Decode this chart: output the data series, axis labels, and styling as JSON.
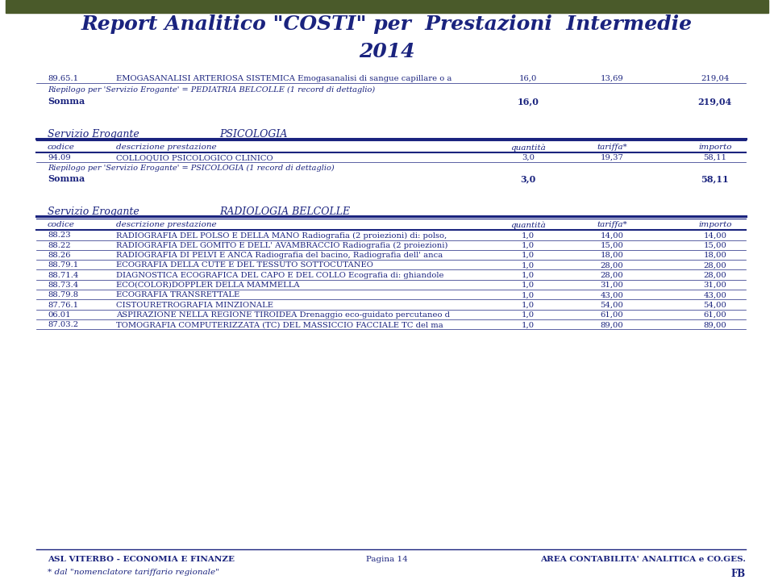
{
  "bg_color": "#ffffff",
  "top_bar_color": "#4a5a2a",
  "title_color": "#1a237e",
  "title": "Report Analitico \"COSTI\" per  Prestazioni  Intermedie\n2014",
  "sections": [
    {
      "codice": "89.65.1",
      "descrizione": "EMOGASANALISI ARTERIOSA SISTEMICA Emogasanalisi di sangue capillare o a",
      "quantita": "16,0",
      "tariffa": "13,69",
      "importo": "219,04"
    },
    {
      "riepilogo": "Riepilogo per 'Servizio Erogante' = PEDIATRIA BELCOLLE (1 record di dettaglio)"
    },
    {
      "somma": true,
      "quantita": "16,0",
      "importo": "219,04"
    }
  ],
  "servizio_psicologia": {
    "label": "Servizio Erogante",
    "name": "PSICOLOGIA",
    "header": [
      "codice",
      "descrizione prestazione",
      "quantità",
      "tariffa*",
      "importo"
    ],
    "rows": [
      {
        "codice": "94.09",
        "descrizione": "COLLOQUIO PSICOLOGICO CLINICO",
        "quantita": "3,0",
        "tariffa": "19,37",
        "importo": "58,11"
      }
    ],
    "riepilogo": "Riepilogo per 'Servizio Erogante' = PSICOLOGIA (1 record di dettaglio)",
    "somma": {
      "quantita": "3,0",
      "importo": "58,11"
    }
  },
  "servizio_radiologia": {
    "label": "Servizio Erogante",
    "name": "RADIOLOGIA BELCOLLE",
    "header": [
      "codice",
      "descrizione prestazione",
      "quantità",
      "tariffa*",
      "importo"
    ],
    "rows": [
      {
        "codice": "88.23",
        "descrizione": "RADIOGRAFIA DEL POLSO E DELLA MANO Radiografia (2 proiezioni) di: polso,",
        "quantita": "1,0",
        "tariffa": "14,00",
        "importo": "14,00"
      },
      {
        "codice": "88.22",
        "descrizione": "RADIOGRAFIA DEL GOMITO E DELL' AVAMBRACCIO Radiografia (2 proiezioni)",
        "quantita": "1,0",
        "tariffa": "15,00",
        "importo": "15,00"
      },
      {
        "codice": "88.26",
        "descrizione": "RADIOGRAFIA DI PELVI E ANCA Radiografia del bacino, Radiografia dell' anca",
        "quantita": "1,0",
        "tariffa": "18,00",
        "importo": "18,00"
      },
      {
        "codice": "88.79.1",
        "descrizione": "ECOGRAFIA DELLA CUTE E DEL TESSUTO SOTTOCUTANEO",
        "quantita": "1,0",
        "tariffa": "28,00",
        "importo": "28,00"
      },
      {
        "codice": "88.71.4",
        "descrizione": "DIAGNOSTICA ECOGRAFICA DEL CAPO E DEL COLLO Ecografia di: ghiandole",
        "quantita": "1,0",
        "tariffa": "28,00",
        "importo": "28,00"
      },
      {
        "codice": "88.73.4",
        "descrizione": "ECO(COLOR)DOPPLER DELLA MAMMELLA",
        "quantita": "1,0",
        "tariffa": "31,00",
        "importo": "31,00"
      },
      {
        "codice": "88.79.8",
        "descrizione": "ECOGRAFIA TRANSRETTALE",
        "quantita": "1,0",
        "tariffa": "43,00",
        "importo": "43,00"
      },
      {
        "codice": "87.76.1",
        "descrizione": "CISTOURETROGRAFIA MINZIONALE",
        "quantita": "1,0",
        "tariffa": "54,00",
        "importo": "54,00"
      },
      {
        "codice": "06.01",
        "descrizione": "ASPIRAZIONE NELLA REGIONE TIROIDEA Drenaggio eco-guidato percutaneo d",
        "quantita": "1,0",
        "tariffa": "61,00",
        "importo": "61,00"
      },
      {
        "codice": "87.03.2",
        "descrizione": "TOMOGRAFIA COMPUTERIZZATA (TC) DEL MASSICCIO FACCIALE TC del ma",
        "quantita": "1,0",
        "tariffa": "89,00",
        "importo": "89,00"
      }
    ]
  },
  "footer": {
    "left": "ASL VITERBO - ECONOMIA E FINANZE",
    "center": "Pagina 14",
    "right": "AREA CONTABILITA' ANALITICA e CO.GES.",
    "left2": "* dal \"nomenclatore tariffario regionale\"",
    "right2": "FB"
  },
  "col_x": {
    "code": 0.055,
    "desc": 0.145,
    "qty": 0.685,
    "tar": 0.795,
    "imp": 0.93
  }
}
